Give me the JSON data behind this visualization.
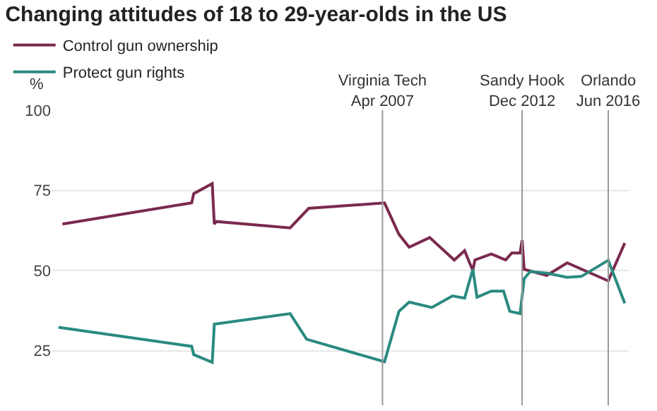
{
  "chart_data": {
    "type": "line",
    "title": "Changing attitudes of 18 to 29-year-olds in the US",
    "ylabel": "%",
    "xlim": [
      "1993-11",
      "2017-04"
    ],
    "ylim": [
      8,
      100
    ],
    "yticks": [
      25,
      50,
      75,
      100
    ],
    "xticks": [
      {
        "value": "2007-04",
        "label": "Virginia Tech\nApr 2007"
      },
      {
        "value": "2012-12",
        "label": "Sandy Hook\nDec 2012"
      },
      {
        "value": "2016-06",
        "label": "Orlando\nJun 2016"
      }
    ],
    "grid": "y",
    "legend": "top left",
    "series": [
      {
        "name": "Control gun ownership",
        "color": "#7b2a4e",
        "x": [
          "1994-04",
          "1999-07",
          "1999-08",
          "2000-05",
          "2000-06",
          "2000-07",
          "2003-07",
          "2004-04",
          "2007-05",
          "2007-12",
          "2008-05",
          "2009-03",
          "2010-03",
          "2010-08",
          "2010-12",
          "2011-01",
          "2011-09",
          "2012-04",
          "2012-07",
          "2012-11",
          "2012-12",
          "2013-01",
          "2013-12",
          "2014-10",
          "2016-06",
          "2017-02"
        ],
        "values": [
          64.5,
          71.1,
          74.0,
          77.1,
          64.5,
          65.3,
          63.3,
          69.4,
          71.1,
          61.3,
          57.3,
          60.3,
          53.3,
          56.2,
          50.0,
          53.3,
          55.2,
          53.3,
          55.5,
          55.5,
          59.5,
          50.4,
          48.5,
          52.4,
          46.8,
          58.6
        ]
      },
      {
        "name": "Protect gun rights",
        "color": "#2a8a80",
        "x": [
          "1994-02",
          "1999-07",
          "1999-08",
          "2000-05",
          "2000-06",
          "2003-07",
          "2004-03",
          "2007-05",
          "2007-12",
          "2008-05",
          "2009-04",
          "2010-02",
          "2010-08",
          "2010-12",
          "2011-02",
          "2011-09",
          "2012-03",
          "2012-06",
          "2012-11",
          "2013-01",
          "2013-04",
          "2013-12",
          "2014-10",
          "2015-05",
          "2016-06",
          "2017-02"
        ],
        "values": [
          32.3,
          26.4,
          23.8,
          21.4,
          33.3,
          36.6,
          28.6,
          21.6,
          37.3,
          40.2,
          38.5,
          42.1,
          41.4,
          50.4,
          41.7,
          43.6,
          43.6,
          37.3,
          36.6,
          47.5,
          49.7,
          49.2,
          47.9,
          48.2,
          53.2,
          39.8
        ]
      }
    ],
    "ref_lines": [
      {
        "axis": "x",
        "value": "2007-04",
        "color": "#999999"
      },
      {
        "axis": "x",
        "value": "2012-12",
        "color": "#999999"
      },
      {
        "axis": "x",
        "value": "2016-06",
        "color": "#999999"
      }
    ]
  }
}
